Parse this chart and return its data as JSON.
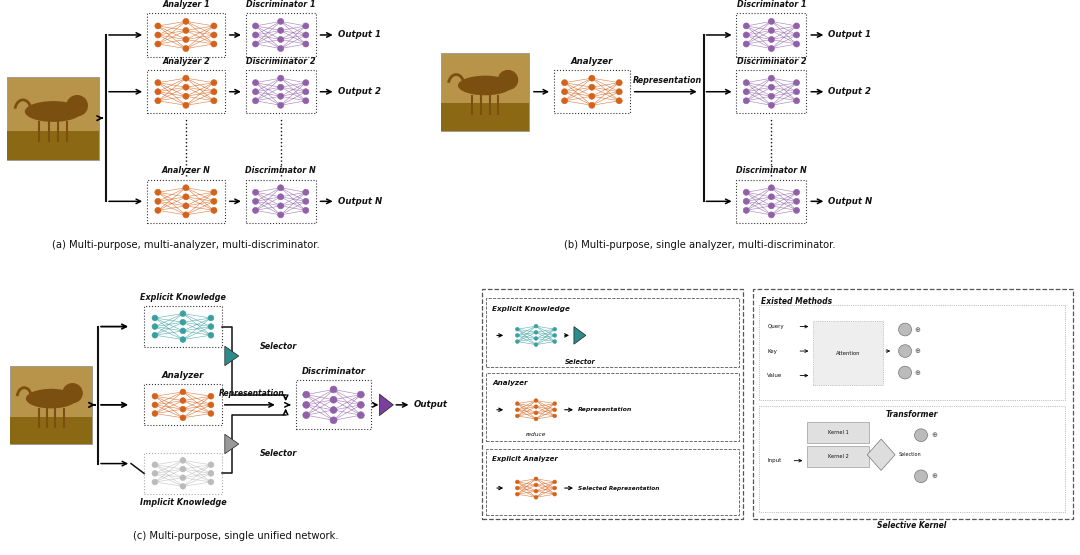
{
  "fig_width": 10.8,
  "fig_height": 5.55,
  "bg_color": "#ffffff",
  "orange_color": "#D4621A",
  "purple_color": "#9060A8",
  "teal_color": "#3A9FA0",
  "gray_color": "#BBBBBB",
  "teal_sel": "#2E8B8B",
  "gray_sel": "#999999",
  "purple_sel": "#7B3F9E",
  "text_color": "#111111",
  "caption_a": "(a) Multi-purpose, multi-analyzer, multi-discriminator.",
  "caption_b": "(b) Multi-purpose, single analyzer, multi-discriminator.",
  "caption_c": "(c) Multi-purpose, single unified network."
}
